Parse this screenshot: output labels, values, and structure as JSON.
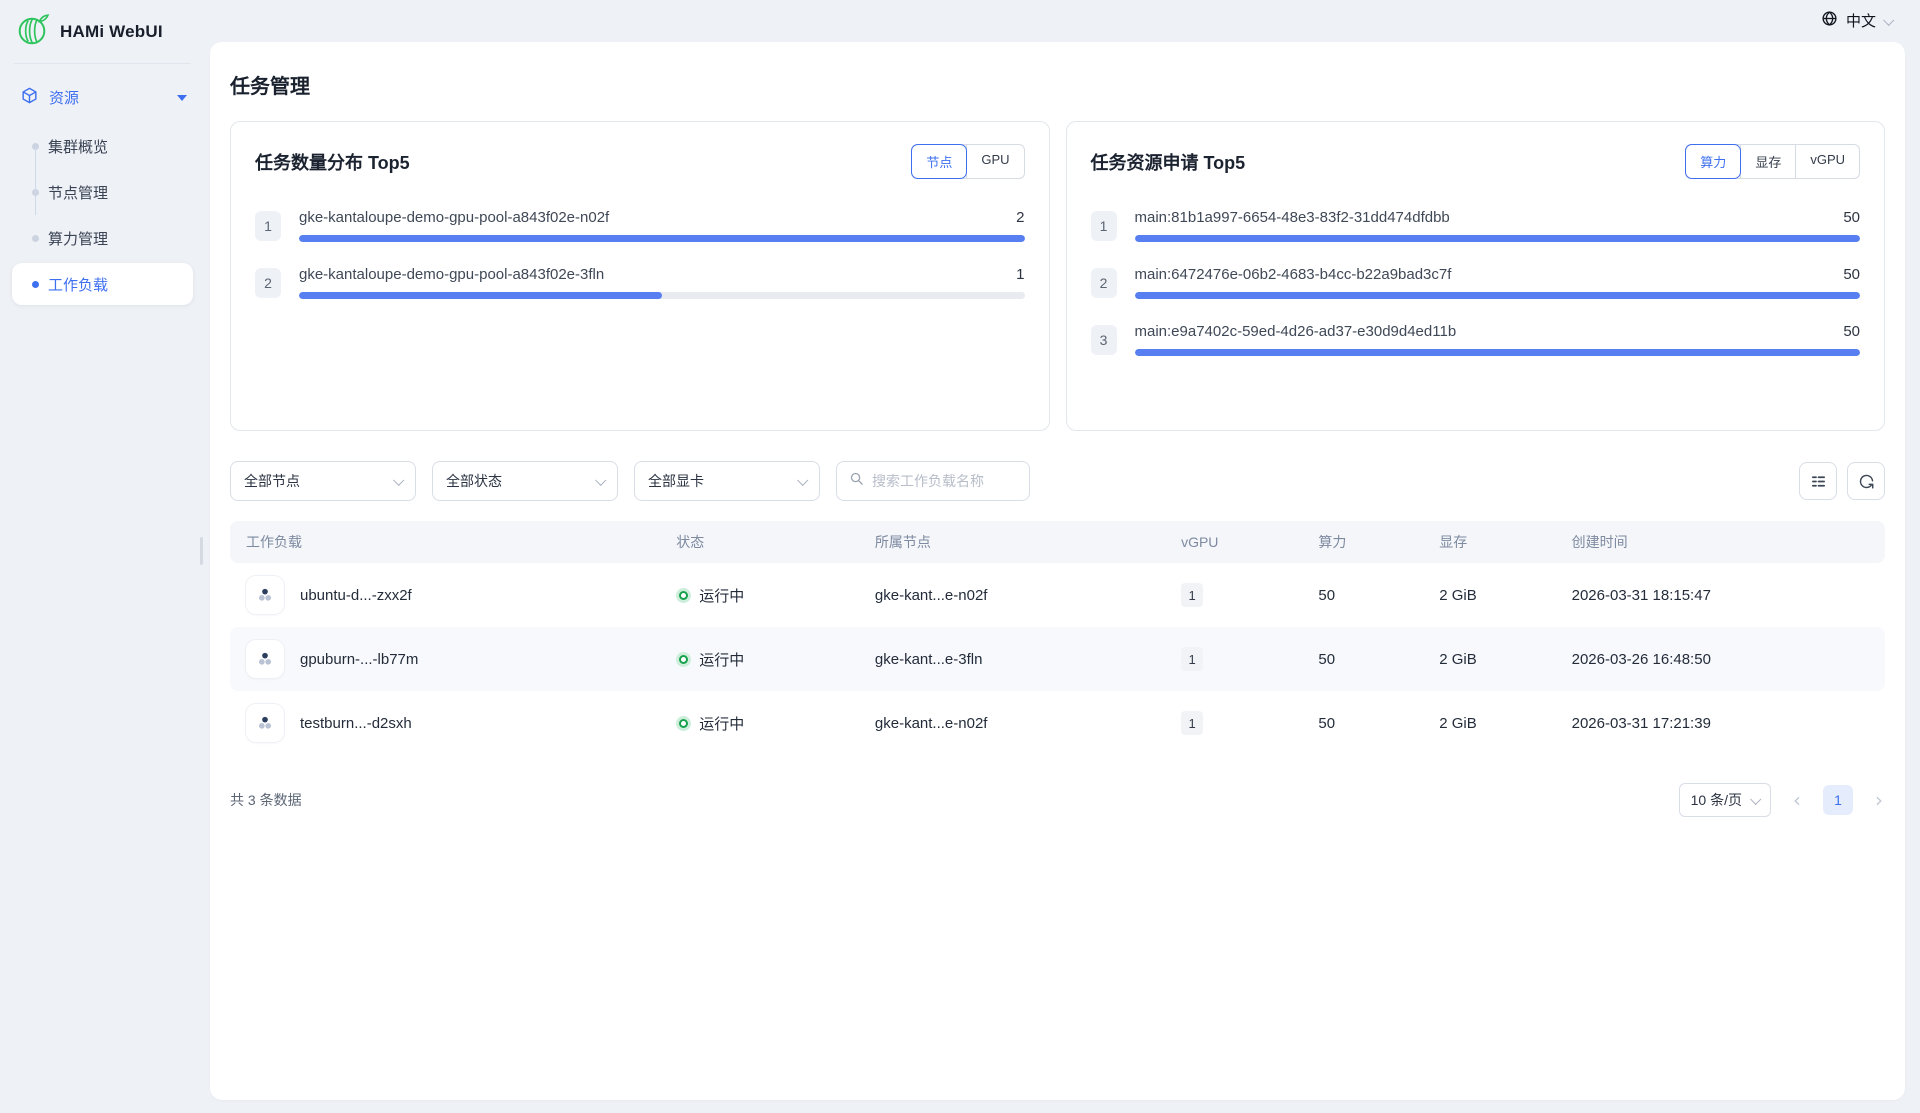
{
  "app": {
    "title": "HAMi WebUI"
  },
  "topbar": {
    "language": "中文"
  },
  "sidebar": {
    "group_label": "资源",
    "items": [
      {
        "label": "集群概览"
      },
      {
        "label": "节点管理"
      },
      {
        "label": "算力管理"
      },
      {
        "label": "工作负载"
      }
    ]
  },
  "page": {
    "title": "任务管理"
  },
  "cards": [
    {
      "title": "任务数量分布 Top5",
      "toggles": [
        "节点",
        "GPU"
      ],
      "rows": [
        {
          "rank": "1",
          "name": "gke-kantaloupe-demo-gpu-pool-a843f02e-n02f",
          "value": "2",
          "percent": 100
        },
        {
          "rank": "2",
          "name": "gke-kantaloupe-demo-gpu-pool-a843f02e-3fln",
          "value": "1",
          "percent": 50
        }
      ]
    },
    {
      "title": "任务资源申请 Top5",
      "toggles": [
        "算力",
        "显存",
        "vGPU"
      ],
      "rows": [
        {
          "rank": "1",
          "name": "main:81b1a997-6654-48e3-83f2-31dd474dfdbb",
          "value": "50",
          "percent": 100
        },
        {
          "rank": "2",
          "name": "main:6472476e-06b2-4683-b4cc-b22a9bad3c7f",
          "value": "50",
          "percent": 100
        },
        {
          "rank": "3",
          "name": "main:e9a7402c-59ed-4d26-ad37-e30d9d4ed11b",
          "value": "50",
          "percent": 100
        }
      ]
    }
  ],
  "filters": {
    "node": "全部节点",
    "status": "全部状态",
    "gpu": "全部显卡",
    "search_placeholder": "搜索工作负载名称"
  },
  "table": {
    "headers": {
      "workload": "工作负载",
      "status": "状态",
      "node": "所属节点",
      "vgpu": "vGPU",
      "compute": "算力",
      "memory": "显存",
      "created": "创建时间"
    },
    "rows": [
      {
        "name": "ubuntu-d...-zxx2f",
        "status": "运行中",
        "node": "gke-kant...e-n02f",
        "vgpu": "1",
        "compute": "50",
        "memory": "2 GiB",
        "created": "2026-03-31 18:15:47"
      },
      {
        "name": "gpuburn-...-lb77m",
        "status": "运行中",
        "node": "gke-kant...e-3fln",
        "vgpu": "1",
        "compute": "50",
        "memory": "2 GiB",
        "created": "2026-03-26 16:48:50"
      },
      {
        "name": "testburn...-d2sxh",
        "status": "运行中",
        "node": "gke-kant...e-n02f",
        "vgpu": "1",
        "compute": "50",
        "memory": "2 GiB",
        "created": "2026-03-31 17:21:39"
      }
    ]
  },
  "pagination": {
    "total": "共 3 条数据",
    "page_size": "10 条/页",
    "page": "1"
  },
  "colors": {
    "accent": "#3e6ff0",
    "bar_fill": "#587ff2",
    "bar_track": "#e8ebf0",
    "success": "#17a04c",
    "page_bg": "#eef1f6",
    "panel_bg": "#ffffff"
  }
}
